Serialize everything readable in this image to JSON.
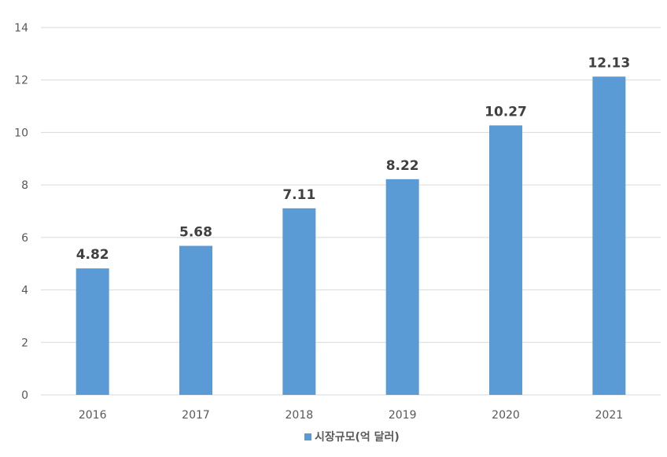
{
  "chart_data": {
    "type": "bar",
    "categories": [
      "2016",
      "2017",
      "2018",
      "2019",
      "2020",
      "2021"
    ],
    "series": [
      {
        "name": "시장규모(억 달러)",
        "values": [
          4.82,
          5.68,
          7.11,
          8.22,
          10.27,
          12.13
        ],
        "color": "#5B9BD5"
      }
    ],
    "data_labels": [
      "4.82",
      "5.68",
      "7.11",
      "8.22",
      "10.27",
      "12.13"
    ],
    "ylim": [
      0,
      14
    ],
    "yticks": [
      0,
      2,
      4,
      6,
      8,
      10,
      12,
      14
    ],
    "ytick_labels": [
      "0",
      "2",
      "4",
      "6",
      "8",
      "10",
      "12",
      "14"
    ],
    "grid": true,
    "legend_position": "bottom",
    "title": "",
    "xlabel": "",
    "ylabel": ""
  }
}
